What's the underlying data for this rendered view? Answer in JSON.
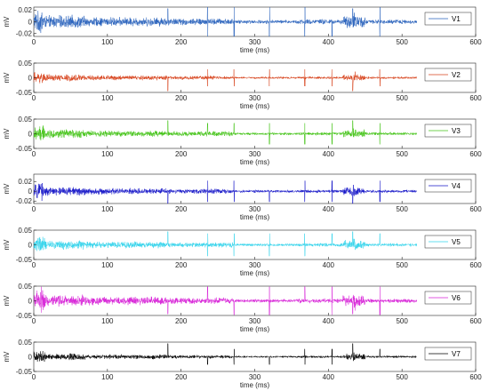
{
  "chart_data": {
    "type": "line",
    "description_free": true,
    "xlabel": "time (ms)",
    "ylabel": "mV",
    "xlim": [
      0,
      600
    ],
    "xticks": [
      "0",
      "100",
      "200",
      "300",
      "400",
      "500",
      "600"
    ],
    "grid": false,
    "legend_placement": "right",
    "panels": [
      {
        "name": "V1",
        "color": "#2a63bd",
        "ylim": [
          -0.025,
          0.025
        ],
        "yticks": [
          "0.02",
          "0",
          "-0.02"
        ],
        "amp": 0.011,
        "data_end_ms": 520
      },
      {
        "name": "V2",
        "color": "#d8431c",
        "ylim": [
          -0.05,
          0.05
        ],
        "yticks": [
          "0.05",
          "0",
          "-0.05"
        ],
        "amp": 0.012,
        "data_end_ms": 520
      },
      {
        "name": "V3",
        "color": "#44c417",
        "ylim": [
          -0.05,
          0.05
        ],
        "yticks": [
          "0.05",
          "0",
          "-0.05"
        ],
        "amp": 0.015,
        "data_end_ms": 520
      },
      {
        "name": "V4",
        "color": "#1717c9",
        "ylim": [
          -0.025,
          0.035
        ],
        "yticks": [
          "0.02",
          "0",
          "-0.02"
        ],
        "amp": 0.009,
        "data_end_ms": 520
      },
      {
        "name": "V5",
        "color": "#33d4ec",
        "ylim": [
          -0.05,
          0.05
        ],
        "yticks": [
          "0.05",
          "0",
          "-0.05"
        ],
        "amp": 0.016,
        "data_end_ms": 520
      },
      {
        "name": "V6",
        "color": "#d822d8",
        "ylim": [
          -0.05,
          0.05
        ],
        "yticks": [
          "0.05",
          "0",
          "-0.05"
        ],
        "amp": 0.02,
        "data_end_ms": 520
      },
      {
        "name": "V7",
        "color": "#000000",
        "ylim": [
          -0.05,
          0.05
        ],
        "yticks": [
          "0.05",
          "0",
          "-0.05"
        ],
        "amp": 0.011,
        "data_end_ms": 520
      }
    ]
  }
}
